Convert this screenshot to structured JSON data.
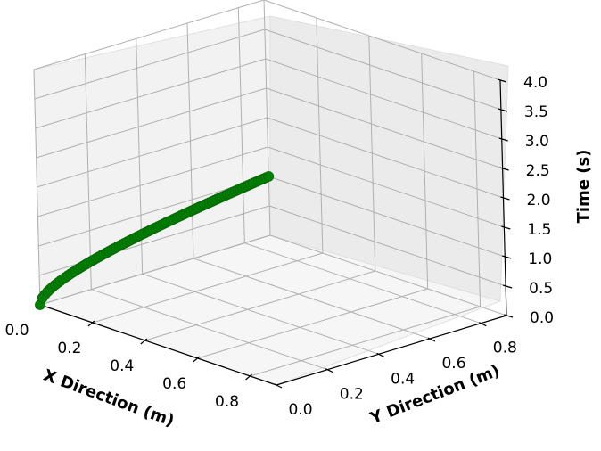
{
  "chart_data": {
    "type": "scatter3d",
    "title": "",
    "xlabel": "X Direction (m)",
    "ylabel": "Y Direction (m)",
    "zlabel": "Time (s)",
    "xlim": [
      0.0,
      0.9
    ],
    "ylim": [
      0.0,
      0.9
    ],
    "zlim": [
      0.0,
      4.0
    ],
    "x_ticks": [
      "0.0",
      "0.2",
      "0.4",
      "0.6",
      "0.8"
    ],
    "y_ticks": [
      "0.0",
      "0.2",
      "0.4",
      "0.6",
      "0.8"
    ],
    "z_ticks": [
      "0.0",
      "0.5",
      "1.0",
      "1.5",
      "2.0",
      "2.5",
      "3.0",
      "3.5",
      "4.0"
    ],
    "grid": true,
    "series": [
      {
        "color": "#008000",
        "marker": "circle",
        "x": [
          0.0
        ],
        "y_range": [
          0.0,
          0.9
        ],
        "z_range": [
          0.0,
          1.0
        ],
        "point_count": 90
      }
    ]
  }
}
